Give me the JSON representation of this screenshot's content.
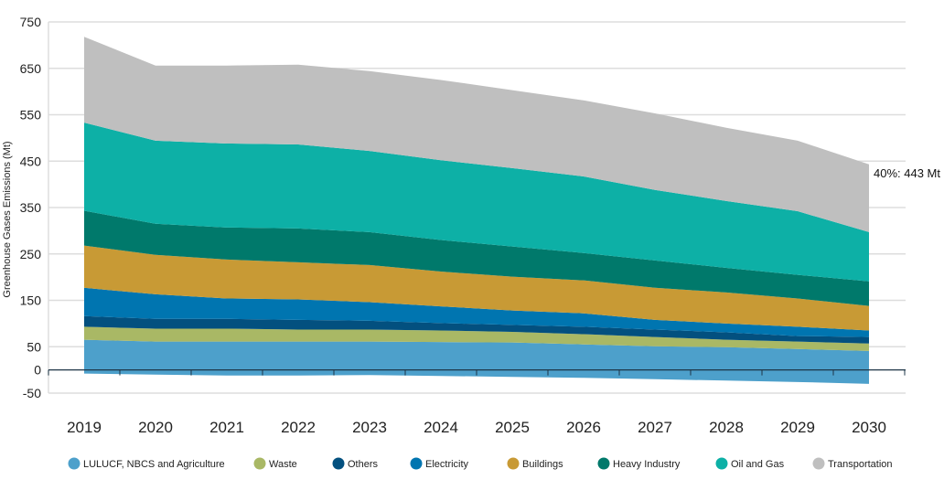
{
  "chart_data": {
    "type": "area",
    "stacked": true,
    "title": "",
    "xlabel": "",
    "ylabel": "Greenhouse Gases Emissions (Mt)",
    "ylim": [
      -50,
      750
    ],
    "yticks": [
      750,
      650,
      550,
      450,
      350,
      250,
      150,
      50,
      0,
      -50
    ],
    "grid": true,
    "legend_position": "bottom",
    "categories": [
      "2019",
      "2020",
      "2021",
      "2022",
      "2023",
      "2024",
      "2025",
      "2026",
      "2027",
      "2028",
      "2029",
      "2030"
    ],
    "series": [
      {
        "name": "LULUCF, NBCS and Agriculture",
        "color": "#4da0cb",
        "values": [
          65,
          61,
          61,
          61,
          61,
          60,
          59,
          55,
          51,
          49,
          45,
          41
        ],
        "negative_values": [
          -8,
          -10,
          -12,
          -12,
          -11,
          -13,
          -15,
          -17,
          -20,
          -23,
          -26,
          -30
        ]
      },
      {
        "name": "Waste",
        "color": "#a9b865",
        "values": [
          28,
          28,
          28,
          26,
          26,
          25,
          23,
          22,
          20,
          16,
          16,
          16
        ]
      },
      {
        "name": "Others",
        "color": "#03507f",
        "values": [
          23,
          21,
          21,
          21,
          19,
          16,
          15,
          16,
          16,
          16,
          12,
          14
        ]
      },
      {
        "name": "Electricity",
        "color": "#0075b0",
        "values": [
          61,
          53,
          44,
          44,
          40,
          36,
          31,
          29,
          21,
          19,
          20,
          14
        ]
      },
      {
        "name": "Buildings",
        "color": "#c89a35",
        "values": [
          91,
          85,
          84,
          80,
          80,
          75,
          73,
          71,
          69,
          67,
          61,
          53
        ]
      },
      {
        "name": "Heavy Industry",
        "color": "#00796b",
        "values": [
          75,
          67,
          69,
          73,
          71,
          68,
          65,
          59,
          59,
          53,
          51,
          53
        ]
      },
      {
        "name": "Oil and Gas",
        "color": "#0db0a6",
        "values": [
          190,
          179,
          181,
          181,
          175,
          172,
          169,
          165,
          152,
          144,
          137,
          106
        ]
      },
      {
        "name": "Transportation",
        "color": "#bfbfbf",
        "values": [
          185,
          162,
          168,
          172,
          172,
          173,
          168,
          164,
          165,
          158,
          152,
          146
        ]
      }
    ],
    "annotations": [
      {
        "text": "40%: 443 Mt",
        "x": "2030",
        "y": 443
      }
    ]
  }
}
